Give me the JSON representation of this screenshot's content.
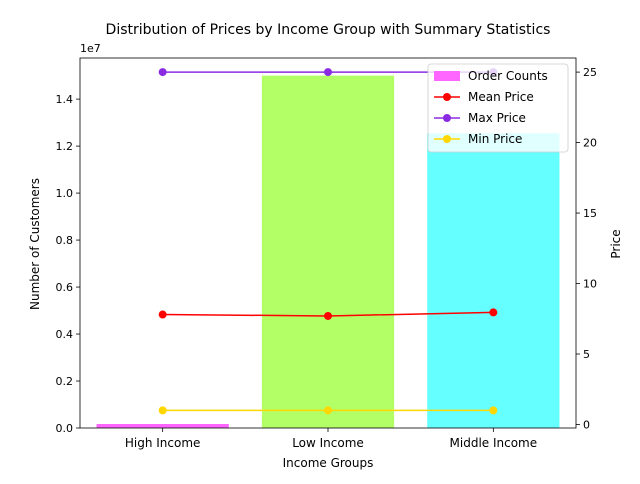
{
  "chart_data": {
    "type": "bar",
    "title": "Distribution of Prices by Income Group with Summary Statistics",
    "xlabel": "Income Groups",
    "ylabel": "Number of Customers",
    "y2label": "Price",
    "categories": [
      "High Income",
      "Low Income",
      "Middle Income"
    ],
    "y_multiplier_label": "1e7",
    "ylim": [
      0,
      15750000
    ],
    "y2lim": [
      -0.25,
      26.0
    ],
    "yticks": [
      {
        "value": 0,
        "label": "0.0"
      },
      {
        "value": 2000000,
        "label": "0.2"
      },
      {
        "value": 4000000,
        "label": "0.4"
      },
      {
        "value": 6000000,
        "label": "0.6"
      },
      {
        "value": 8000000,
        "label": "0.8"
      },
      {
        "value": 10000000,
        "label": "1.0"
      },
      {
        "value": 12000000,
        "label": "1.2"
      },
      {
        "value": 14000000,
        "label": "1.4"
      }
    ],
    "y2ticks": [
      {
        "value": 0,
        "label": "0"
      },
      {
        "value": 5,
        "label": "5"
      },
      {
        "value": 10,
        "label": "10"
      },
      {
        "value": 15,
        "label": "15"
      },
      {
        "value": 20,
        "label": "20"
      },
      {
        "value": 25,
        "label": "25"
      }
    ],
    "bars": {
      "name": "Order Counts",
      "values": [
        170000,
        15000000,
        12550000
      ],
      "colors": [
        "#ff66ff",
        "#b3ff66",
        "#66ffff"
      ]
    },
    "series": [
      {
        "name": "Mean Price",
        "values": [
          7.8,
          7.7,
          7.95
        ],
        "color": "#ff0000"
      },
      {
        "name": "Max Price",
        "values": [
          25,
          25,
          25
        ],
        "color": "#8a2be2"
      },
      {
        "name": "Min Price",
        "values": [
          1,
          1,
          1
        ],
        "color": "#ffd700"
      }
    ],
    "legend_position": "top-right",
    "grid": false
  }
}
